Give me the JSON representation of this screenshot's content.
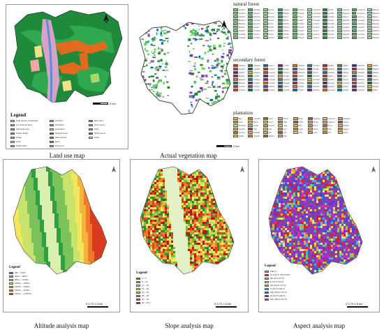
{
  "figure": {
    "captions": {
      "land_use": "Land use map",
      "vegetation": "Actual vegetation map",
      "altitude": "Altitude analysis map",
      "slope": "Slope analysis map",
      "aspect": "Aspect analysis map"
    },
    "scale_label_km": "2 km",
    "scale_label_small": "0 0.75 1.5 km"
  },
  "land_use_legend": {
    "title": "Legend",
    "items": [
      {
        "label": "High density residential",
        "color": "#d9d9d9"
      },
      {
        "label": "Commercial area",
        "color": "#f4a6a6"
      },
      {
        "label": "Industrial area",
        "color": "#c080c0"
      },
      {
        "label": "Public facility",
        "color": "#ff6b6b"
      },
      {
        "label": "Road",
        "color": "#b0b0b0"
      },
      {
        "label": "Field",
        "color": "#f7e08a"
      },
      {
        "label": "Paddy field",
        "color": "#e8c070"
      },
      {
        "label": "Orchard",
        "color": "#a5d66e"
      },
      {
        "label": "Plantation",
        "color": "#7ec850"
      },
      {
        "label": "Grassland",
        "color": "#c9e9a5"
      },
      {
        "label": "Natural forest",
        "color": "#1f8a3a"
      },
      {
        "label": "Mixed forest",
        "color": "#2fa84f"
      },
      {
        "label": "River",
        "color": "#5a8fd8"
      },
      {
        "label": "Reservoir",
        "color": "#8fb7e8"
      },
      {
        "label": "Bare land",
        "color": "#e26a1c"
      },
      {
        "label": "Golf course",
        "color": "#8dd38d"
      },
      {
        "label": "Park",
        "color": "#6bbf6b"
      },
      {
        "label": "Mining area",
        "color": "#8b5a2b"
      },
      {
        "label": "Other",
        "color": "#f0f0f0"
      }
    ]
  },
  "vegetation_legend": {
    "natural_forest": {
      "title": "natural forest",
      "items": [
        "AcuPd",
        "AbeQa",
        "FrrCa",
        "PicQm",
        "PinQm",
        "QmCpa",
        "QmPl",
        "QacCa",
        "CoeCpd",
        "PacAs",
        "AcuPm",
        "AbeFm",
        "FrrCm",
        "PicQa",
        "PinQa",
        "QmCpd",
        "QmPd",
        "QacCm",
        "CoeCpm",
        "PacAm",
        "AbePd",
        "AbeCm",
        "FrrQm",
        "PicLc",
        "PinLc",
        "QmCtm",
        "QmPm",
        "QacLc",
        "CoeLc",
        "PacLc",
        "BetQm",
        "AcuQa",
        "FrrQa",
        "PicPc",
        "PinPc",
        "QmCtd",
        "QmPs",
        "QacPd",
        "CoeQa",
        "PacQm",
        "BetQa",
        "AcuCm",
        "FrrLc",
        "PicPd",
        "PinPd",
        "QmFm",
        "QmSm",
        "QacPm",
        "CoeQm",
        "PacQa",
        "BetPd",
        "AcuLc",
        "FrrPd",
        "PicPm",
        "PinPm",
        "QmFd",
        "QmSd",
        "QacQm",
        "CoePd",
        "PacPd",
        "CasPd",
        "AcuQm",
        "FrrPm",
        "PicSm",
        "PinSm",
        "QmLc",
        "QmQa",
        "QacQa",
        "CoePm",
        "PacPm",
        "CasQm",
        "AcuPs",
        "FrrPs",
        "PicSd",
        "PinSd",
        "QmLd",
        "QmQs",
        "QacSm",
        "CoeSm",
        "PacSm",
        "CasQa",
        "AcuSm",
        "FrrSm",
        "PicQs",
        "PinQs",
        "QmLm",
        "QmQd",
        "QacSd",
        "CoeSd",
        "PacSd"
      ],
      "colors": [
        "#6fd36f",
        "#3fbf5f",
        "#8ee08e",
        "#2e9e4e",
        "#55c455",
        "#a4e4a4",
        "#1f8a3a",
        "#77cc88",
        "#44b066",
        "#9cd99c"
      ]
    },
    "secondary_forest": {
      "title": "secondary forest",
      "items": [
        "AbePd",
        "CasQa",
        "CorLc",
        "FrrPm",
        "PhePd",
        "PinQm",
        "QalPd",
        "QdPd",
        "RobPd",
        "SalPd",
        "AcePd",
        "CasPd",
        "CorPd",
        "FrrQa",
        "PheQa",
        "PinQa",
        "QalQm",
        "QdQm",
        "RobQm",
        "SalQm",
        "AlnPd",
        "CasQm",
        "CorQm",
        "FrrQm",
        "PheQm",
        "PinLc",
        "QalQa",
        "QdQa",
        "RobQa",
        "SalQa",
        "BetPd",
        "CelPd",
        "CryPd",
        "JugPd",
        "PicPd",
        "PruPd",
        "QalLc",
        "QdLc",
        "RobLc",
        "SalLc",
        "BetQm",
        "CelQm",
        "CryQm",
        "JugQm",
        "PicQm",
        "PruQm",
        "QmPd",
        "QmLc",
        "RobPm",
        "StyPd",
        "BetQa",
        "CelQa",
        "CryQa",
        "JugQa",
        "PicQa",
        "PruQa",
        "QmQa",
        "QmQm",
        "RobPs",
        "StyQm",
        "CarPd",
        "CinPd",
        "FraPd",
        "LarPd",
        "PinPd",
        "PtePd",
        "QacPd",
        "QsPd",
        "RobSm",
        "StyQa",
        "CarQm",
        "CinQm",
        "FraQm",
        "LarQm",
        "PinPm",
        "PteQm",
        "QacQm",
        "QsQm",
        "RobSd",
        "TilPd"
      ],
      "colors": [
        "#c0392b",
        "#2e7d32",
        "#1565c0",
        "#6a1b9a",
        "#ef6c00",
        "#00838f",
        "#ad1457",
        "#558b2f",
        "#4527a0",
        "#f9a825",
        "#d84315",
        "#00695c"
      ]
    },
    "plantation": {
      "title": "plantation",
      "items": [
        "Bet",
        "CasPm",
        "LiiLc",
        "PinS",
        "PruC",
        "QacCm",
        "QmCm",
        "RobQm",
        "Aca",
        "Bet2",
        "CryJ",
        "Mal",
        "PinR",
        "PruQ",
        "QalCm",
        "QmLc",
        "RobSm",
        "AcaL",
        "CasCr",
        "Jug",
        "Pau",
        "PinT",
        "Pop",
        "QdCm",
        "QmQa",
        "Sal",
        "Ala",
        "Cel",
        "LarK",
        "PicA",
        "Pla",
        "QacQ",
        "QmCp",
        "RobPs",
        "Zel",
        "Aln",
        "Cha",
        "LarL",
        "Pin",
        "PruS",
        "QalQ",
        "QmPd",
        "RobLc",
        "Mix"
      ],
      "colors": [
        "#e6c229",
        "#d98c1c",
        "#b5651d",
        "#f0a07c",
        "#c8b560",
        "#a0522d",
        "#e5d36b",
        "#d9a066",
        "#cf8f3a",
        "#f2c14e"
      ]
    }
  },
  "altitude_legend": {
    "title": "Legend",
    "items": [
      {
        "label": "460 ~ 600m",
        "color": "#2ea043"
      },
      {
        "label": "600m ~ 800m",
        "color": "#7cc25a"
      },
      {
        "label": "800m ~ 1000m",
        "color": "#c7e36b"
      },
      {
        "label": "1000m ~ 1200m",
        "color": "#f2e65c"
      },
      {
        "label": "1200m ~ 1400m",
        "color": "#f5b23c"
      },
      {
        "label": "1400m ~ 1600m",
        "color": "#ee7a2a"
      },
      {
        "label": "1600m ~ 1738.5m",
        "color": "#d93b1f"
      }
    ]
  },
  "slope_legend": {
    "title": "Legend",
    "items": [
      {
        "label": "0 ~ 5",
        "color": "#2e8b3a"
      },
      {
        "label": "5 ~ 10",
        "color": "#76c143"
      },
      {
        "label": "10 ~ 15",
        "color": "#c9e26a"
      },
      {
        "label": "15 ~ 20",
        "color": "#f3ec5c"
      },
      {
        "label": "20 ~ 25",
        "color": "#f7b63b"
      },
      {
        "label": "25 ~ 30",
        "color": "#ef7d24"
      },
      {
        "label": "30 ~ 40",
        "color": "#e0451b"
      },
      {
        "label": "40 ~ 62.7",
        "color": "#b81414"
      }
    ]
  },
  "aspect_legend": {
    "title": "Legend",
    "items": [
      {
        "label": "Flat(-1)",
        "color": "#a8a8a8"
      },
      {
        "label": "N (0-22.5, 337.5-360)",
        "color": "#e21b1b"
      },
      {
        "label": "NE (22.5-67.5)",
        "color": "#f5a623"
      },
      {
        "label": "E (67.5-112.5)",
        "color": "#f7e65c"
      },
      {
        "label": "SE (112.5-157.5)",
        "color": "#7fd04a"
      },
      {
        "label": "S (157.5-202.5)",
        "color": "#3ab8d9"
      },
      {
        "label": "SW (202.5-247.5)",
        "color": "#2f5fd8"
      },
      {
        "label": "W (247.5-292.5)",
        "color": "#6a2fd8"
      },
      {
        "label": "NW (292.5-337.5)",
        "color": "#d82fb8"
      }
    ]
  },
  "colors": {
    "frame_border": "#9a9a9a",
    "valley_land_use": "#e26a1c",
    "forest": "#1f8a3a",
    "river": "#5a8fd8"
  }
}
